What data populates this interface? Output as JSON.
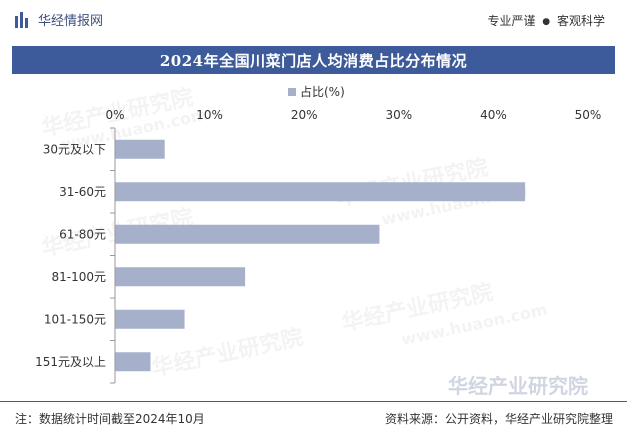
{
  "header": {
    "brand": "华经情报网",
    "slogan_part1": "专业严谨",
    "slogan_sep": "●",
    "slogan_part2": "客观科学"
  },
  "colors": {
    "bar": "#a6b0cb",
    "title_band": "#3d5b9a"
  },
  "chart_data": {
    "type": "bar",
    "orientation": "horizontal",
    "title": "2024年全国川菜门店人均消费占比分布情况",
    "legend": [
      "占比(%)"
    ],
    "legend_position": "top-center",
    "categories": [
      "30元及以下",
      "31-60元",
      "61-80元",
      "81-100元",
      "101-150元",
      "151元及以上"
    ],
    "series": [
      {
        "name": "占比(%)",
        "values": [
          5.2,
          43.3,
          27.9,
          13.7,
          7.3,
          3.7
        ]
      }
    ],
    "xlim": [
      0,
      50
    ],
    "xticks": [
      "0%",
      "10%",
      "20%",
      "30%",
      "40%",
      "50%"
    ],
    "xlabel": "",
    "ylabel": "",
    "grid": false
  },
  "watermark": {
    "cn": "华经产业研究院",
    "url": "www.huaon.com"
  },
  "footer": {
    "note": "注：数据统计时间截至2024年10月",
    "source": "资料来源：公开资料，华经产业研究院整理"
  }
}
